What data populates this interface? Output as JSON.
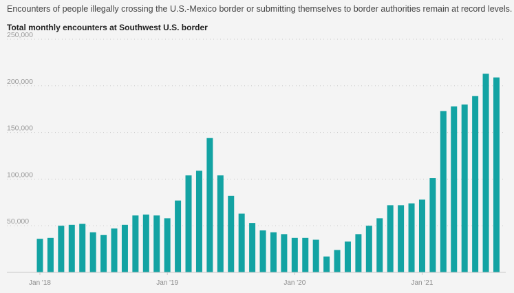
{
  "header": {
    "subtitle": "Encounters of people illegally crossing the U.S.-Mexico border or submitting themselves to border authorities remain at record levels.",
    "title": "Total monthly encounters at Southwest U.S. border"
  },
  "colors": {
    "bar": "#13a3a3",
    "background": "#f4f4f4"
  },
  "chart_data": {
    "type": "bar",
    "title": "Total monthly encounters at Southwest U.S. border",
    "xlabel": "",
    "ylabel": "",
    "ylim": [
      0,
      250000
    ],
    "grid": true,
    "yticks": [
      {
        "value": 50000,
        "label": "50,000"
      },
      {
        "value": 100000,
        "label": "100,000"
      },
      {
        "value": 150000,
        "label": "150,000"
      },
      {
        "value": 200000,
        "label": "200,000"
      },
      {
        "value": 250000,
        "label": "250,000"
      }
    ],
    "xticks": [
      {
        "index": 0,
        "label": "Jan '18"
      },
      {
        "index": 12,
        "label": "Jan '19"
      },
      {
        "index": 24,
        "label": "Jan '20"
      },
      {
        "index": 36,
        "label": "Jan '21"
      }
    ],
    "categories": [
      "2018-01",
      "2018-02",
      "2018-03",
      "2018-04",
      "2018-05",
      "2018-06",
      "2018-07",
      "2018-08",
      "2018-09",
      "2018-10",
      "2018-11",
      "2018-12",
      "2019-01",
      "2019-02",
      "2019-03",
      "2019-04",
      "2019-05",
      "2019-06",
      "2019-07",
      "2019-08",
      "2019-09",
      "2019-10",
      "2019-11",
      "2019-12",
      "2020-01",
      "2020-02",
      "2020-03",
      "2020-04",
      "2020-05",
      "2020-06",
      "2020-07",
      "2020-08",
      "2020-09",
      "2020-10",
      "2020-11",
      "2020-12",
      "2021-01",
      "2021-02",
      "2021-03",
      "2021-04",
      "2021-05",
      "2021-06",
      "2021-07",
      "2021-08"
    ],
    "values": [
      36000,
      37000,
      50000,
      51000,
      52000,
      43000,
      40000,
      47000,
      51000,
      61000,
      62000,
      61000,
      58000,
      77000,
      104000,
      109000,
      144000,
      104000,
      82000,
      63000,
      53000,
      45000,
      43000,
      41000,
      37000,
      37000,
      35000,
      17000,
      24000,
      33000,
      41000,
      50000,
      58000,
      72000,
      72000,
      74000,
      78000,
      101000,
      173000,
      178000,
      180000,
      189000,
      213000,
      209000
    ]
  }
}
